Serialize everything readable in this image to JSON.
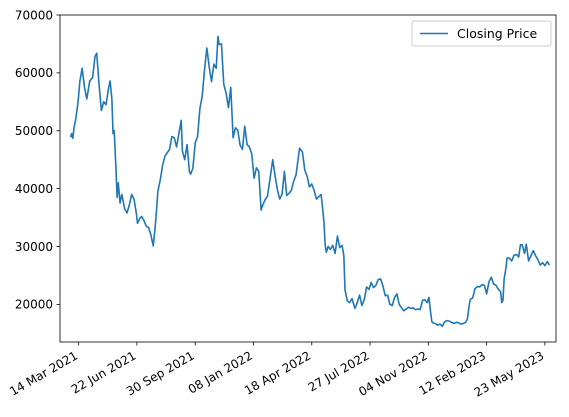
{
  "chart_data": {
    "type": "line",
    "title": "",
    "xlabel": "",
    "ylabel": "",
    "grid": false,
    "legend_placement": "top-right",
    "x_tick_labels": [
      {
        "date": "2021-03-14",
        "label": "14 Mar 2021"
      },
      {
        "date": "2021-06-22",
        "label": "22 Jun 2021"
      },
      {
        "date": "2021-09-30",
        "label": "30 Sep 2021"
      },
      {
        "date": "2022-01-08",
        "label": "08 Jan 2022"
      },
      {
        "date": "2022-04-18",
        "label": "18 Apr 2022"
      },
      {
        "date": "2022-07-27",
        "label": "27 Jul 2022"
      },
      {
        "date": "2022-11-04",
        "label": "04 Nov 2022"
      },
      {
        "date": "2023-02-12",
        "label": "12 Feb 2023"
      },
      {
        "date": "2023-05-23",
        "label": "23 May 2023"
      }
    ],
    "y_tick_labels": [
      {
        "value": 20000,
        "label": "20000"
      },
      {
        "value": 30000,
        "label": "30000"
      },
      {
        "value": 40000,
        "label": "40000"
      },
      {
        "value": 50000,
        "label": "50000"
      },
      {
        "value": 60000,
        "label": "60000"
      },
      {
        "value": 70000,
        "label": "70000"
      }
    ],
    "xlim": [
      "2021-02-10",
      "2023-06-11"
    ],
    "ylim": [
      13500,
      70000
    ],
    "series": [
      {
        "name": "Closing Price",
        "color": "#1f77b4",
        "x": [
          "2021-02-28",
          "2021-03-02",
          "2021-03-04",
          "2021-03-06",
          "2021-03-09",
          "2021-03-13",
          "2021-03-16",
          "2021-03-20",
          "2021-03-24",
          "2021-03-28",
          "2021-04-02",
          "2021-04-07",
          "2021-04-11",
          "2021-04-14",
          "2021-04-18",
          "2021-04-22",
          "2021-04-26",
          "2021-04-30",
          "2021-05-04",
          "2021-05-07",
          "2021-05-10",
          "2021-05-12",
          "2021-05-14",
          "2021-05-17",
          "2021-05-19",
          "2021-05-21",
          "2021-05-24",
          "2021-05-27",
          "2021-06-01",
          "2021-06-05",
          "2021-06-09",
          "2021-06-13",
          "2021-06-17",
          "2021-06-21",
          "2021-06-23",
          "2021-06-26",
          "2021-06-30",
          "2021-07-04",
          "2021-07-08",
          "2021-07-12",
          "2021-07-16",
          "2021-07-20",
          "2021-07-24",
          "2021-07-28",
          "2021-08-01",
          "2021-08-05",
          "2021-08-09",
          "2021-08-13",
          "2021-08-17",
          "2021-08-21",
          "2021-08-25",
          "2021-08-29",
          "2021-09-02",
          "2021-09-06",
          "2021-09-08",
          "2021-09-12",
          "2021-09-16",
          "2021-09-20",
          "2021-09-22",
          "2021-09-26",
          "2021-09-30",
          "2021-10-04",
          "2021-10-08",
          "2021-10-12",
          "2021-10-16",
          "2021-10-20",
          "2021-10-24",
          "2021-10-28",
          "2021-11-01",
          "2021-11-05",
          "2021-11-08",
          "2021-11-10",
          "2021-11-14",
          "2021-11-18",
          "2021-11-22",
          "2021-11-26",
          "2021-11-30",
          "2021-12-04",
          "2021-12-08",
          "2021-12-12",
          "2021-12-16",
          "2021-12-20",
          "2021-12-24",
          "2021-12-28",
          "2022-01-01",
          "2022-01-05",
          "2022-01-09",
          "2022-01-13",
          "2022-01-17",
          "2022-01-21",
          "2022-01-24",
          "2022-01-28",
          "2022-02-01",
          "2022-02-05",
          "2022-02-10",
          "2022-02-14",
          "2022-02-18",
          "2022-02-22",
          "2022-02-26",
          "2022-03-02",
          "2022-03-06",
          "2022-03-10",
          "2022-03-14",
          "2022-03-18",
          "2022-03-22",
          "2022-03-28",
          "2022-04-02",
          "2022-04-06",
          "2022-04-10",
          "2022-04-14",
          "2022-04-18",
          "2022-04-22",
          "2022-04-26",
          "2022-04-30",
          "2022-05-04",
          "2022-05-07",
          "2022-05-09",
          "2022-05-11",
          "2022-05-13",
          "2022-05-16",
          "2022-05-20",
          "2022-05-24",
          "2022-05-28",
          "2022-06-01",
          "2022-06-05",
          "2022-06-09",
          "2022-06-12",
          "2022-06-14",
          "2022-06-18",
          "2022-06-22",
          "2022-06-26",
          "2022-07-01",
          "2022-07-05",
          "2022-07-09",
          "2022-07-13",
          "2022-07-17",
          "2022-07-21",
          "2022-07-25",
          "2022-07-29",
          "2022-08-02",
          "2022-08-06",
          "2022-08-10",
          "2022-08-14",
          "2022-08-18",
          "2022-08-22",
          "2022-08-26",
          "2022-08-30",
          "2022-09-03",
          "2022-09-07",
          "2022-09-11",
          "2022-09-15",
          "2022-09-19",
          "2022-09-23",
          "2022-09-27",
          "2022-10-01",
          "2022-10-05",
          "2022-10-09",
          "2022-10-13",
          "2022-10-17",
          "2022-10-21",
          "2022-10-25",
          "2022-10-29",
          "2022-11-02",
          "2022-11-05",
          "2022-11-08",
          "2022-11-10",
          "2022-11-12",
          "2022-11-16",
          "2022-11-20",
          "2022-11-24",
          "2022-11-28",
          "2022-12-02",
          "2022-12-06",
          "2022-12-10",
          "2022-12-14",
          "2022-12-18",
          "2022-12-22",
          "2022-12-26",
          "2022-12-30",
          "2023-01-03",
          "2023-01-07",
          "2023-01-10",
          "2023-01-13",
          "2023-01-15",
          "2023-01-19",
          "2023-01-23",
          "2023-01-27",
          "2023-01-31",
          "2023-02-04",
          "2023-02-08",
          "2023-02-12",
          "2023-02-16",
          "2023-02-20",
          "2023-02-24",
          "2023-02-28",
          "2023-03-04",
          "2023-03-08",
          "2023-03-10",
          "2023-03-12",
          "2023-03-14",
          "2023-03-17",
          "2023-03-19",
          "2023-03-23",
          "2023-03-27",
          "2023-03-31",
          "2023-04-04",
          "2023-04-08",
          "2023-04-11",
          "2023-04-14",
          "2023-04-18",
          "2023-04-21",
          "2023-04-25",
          "2023-04-29",
          "2023-05-03",
          "2023-05-07",
          "2023-05-11",
          "2023-05-15",
          "2023-05-19",
          "2023-05-23",
          "2023-05-27",
          "2023-05-31"
        ],
        "y": [
          48900,
          49500,
          48700,
          50500,
          52000,
          55000,
          58500,
          60800,
          57500,
          55500,
          58600,
          59200,
          62800,
          63400,
          58000,
          53500,
          55000,
          54500,
          57200,
          58600,
          55500,
          49500,
          50000,
          43500,
          38500,
          41000,
          37500,
          39000,
          36500,
          35800,
          37200,
          39000,
          38200,
          35700,
          34000,
          34700,
          35200,
          34500,
          33500,
          33300,
          32000,
          30100,
          34200,
          39600,
          41500,
          44000,
          45600,
          46200,
          46800,
          49000,
          48800,
          47200,
          49500,
          51800,
          46500,
          45000,
          47600,
          43000,
          42500,
          43500,
          47900,
          49000,
          53800,
          56000,
          60600,
          64300,
          61000,
          58500,
          61500,
          60800,
          66300,
          64900,
          65000,
          58000,
          56500,
          54000,
          57500,
          48800,
          50500,
          50100,
          47500,
          46800,
          50800,
          47600,
          47200,
          46000,
          41800,
          43600,
          43000,
          36300,
          37200,
          38100,
          38700,
          41500,
          45000,
          42200,
          39800,
          38200,
          39000,
          43000,
          38800,
          39200,
          39700,
          41300,
          42400,
          47000,
          46300,
          43200,
          42100,
          40300,
          40800,
          39700,
          38200,
          38600,
          39000,
          36200,
          34000,
          30200,
          29000,
          30000,
          29500,
          30200,
          28800,
          31800,
          29800,
          30200,
          28400,
          22500,
          20600,
          20300,
          21000,
          19300,
          20300,
          21600,
          19800,
          20800,
          23000,
          22600,
          23800,
          22900,
          23300,
          24300,
          24400,
          23200,
          21500,
          21600,
          20000,
          19800,
          21200,
          21800,
          20000,
          19400,
          18900,
          19200,
          19500,
          19300,
          19400,
          19100,
          19200,
          19100,
          20700,
          20800,
          20300,
          21200,
          18500,
          17000,
          16800,
          16700,
          16400,
          16600,
          16200,
          17000,
          17200,
          17100,
          16900,
          16700,
          16900,
          16800,
          16600,
          16700,
          16900,
          17500,
          19800,
          20900,
          21100,
          22700,
          23100,
          23000,
          23400,
          23300,
          21800,
          23900,
          24700,
          23500,
          23300,
          22600,
          22200,
          20300,
          20700,
          24400,
          26200,
          28000,
          28000,
          27500,
          28500,
          28600,
          28200,
          30300,
          30300,
          28800,
          30400,
          27500,
          28400,
          29300,
          28400,
          27700,
          26800,
          27200,
          26700,
          27400,
          26800
        ]
      }
    ]
  }
}
